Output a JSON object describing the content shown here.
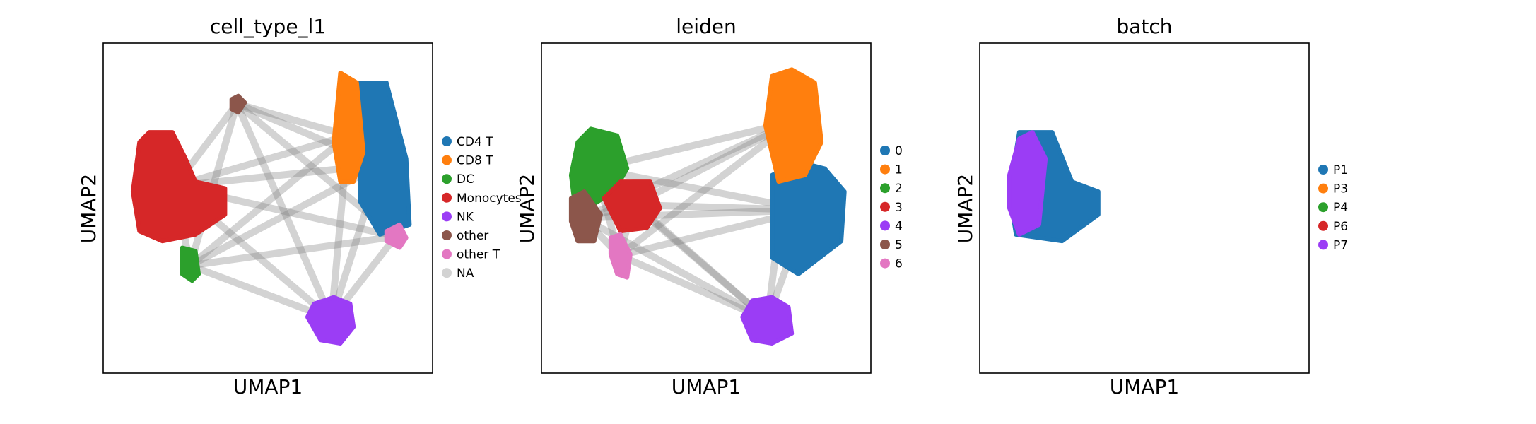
{
  "chart_data": [
    {
      "type": "scatter",
      "title": "cell_type_l1",
      "xlabel": "UMAP1",
      "ylabel": "UMAP2",
      "xticks": [],
      "yticks": [],
      "edges": "PAGA-style grey connections between cluster centroids",
      "legend_position": "right",
      "series": [
        {
          "name": "CD4 T",
          "color": "#1f77b4",
          "region": [
            [
              0.78,
              0.38
            ],
            [
              0.78,
              0.12
            ],
            [
              0.86,
              0.12
            ],
            [
              0.92,
              0.35
            ],
            [
              0.93,
              0.55
            ],
            [
              0.84,
              0.58
            ],
            [
              0.78,
              0.48
            ]
          ]
        },
        {
          "name": "CD8 T",
          "color": "#ff7f0e",
          "region": [
            [
              0.7,
              0.3
            ],
            [
              0.72,
              0.09
            ],
            [
              0.77,
              0.12
            ],
            [
              0.79,
              0.33
            ],
            [
              0.76,
              0.42
            ],
            [
              0.72,
              0.42
            ]
          ]
        },
        {
          "name": "DC",
          "color": "#2ca02c",
          "region": [
            [
              0.24,
              0.62
            ],
            [
              0.28,
              0.63
            ],
            [
              0.29,
              0.7
            ],
            [
              0.27,
              0.72
            ],
            [
              0.24,
              0.7
            ]
          ]
        },
        {
          "name": "Monocytes",
          "color": "#d62728",
          "region": [
            [
              0.09,
              0.45
            ],
            [
              0.11,
              0.3
            ],
            [
              0.14,
              0.27
            ],
            [
              0.21,
              0.27
            ],
            [
              0.25,
              0.35
            ],
            [
              0.28,
              0.42
            ],
            [
              0.37,
              0.44
            ],
            [
              0.37,
              0.52
            ],
            [
              0.28,
              0.58
            ],
            [
              0.18,
              0.6
            ],
            [
              0.11,
              0.57
            ]
          ]
        },
        {
          "name": "NK",
          "color": "#9b3df5",
          "region": [
            [
              0.62,
              0.83
            ],
            [
              0.64,
              0.79
            ],
            [
              0.7,
              0.77
            ],
            [
              0.75,
              0.79
            ],
            [
              0.76,
              0.86
            ],
            [
              0.72,
              0.91
            ],
            [
              0.66,
              0.9
            ]
          ]
        },
        {
          "name": "other",
          "color": "#8c564b",
          "region": [
            [
              0.39,
              0.17
            ],
            [
              0.41,
              0.16
            ],
            [
              0.43,
              0.18
            ],
            [
              0.41,
              0.21
            ],
            [
              0.39,
              0.2
            ]
          ]
        },
        {
          "name": "other T",
          "color": "#e377c2",
          "region": [
            [
              0.86,
              0.57
            ],
            [
              0.9,
              0.55
            ],
            [
              0.92,
              0.59
            ],
            [
              0.9,
              0.62
            ],
            [
              0.86,
              0.6
            ]
          ]
        },
        {
          "name": "NA",
          "color": "#d3d3d3",
          "region": []
        }
      ]
    },
    {
      "type": "scatter",
      "title": "leiden",
      "xlabel": "UMAP1",
      "ylabel": "UMAP2",
      "xticks": [],
      "yticks": [],
      "edges": "PAGA-style grey connections between cluster centroids",
      "legend_position": "right",
      "series": [
        {
          "name": "0",
          "color": "#1f77b4",
          "region": [
            [
              0.7,
              0.4
            ],
            [
              0.78,
              0.36
            ],
            [
              0.86,
              0.38
            ],
            [
              0.92,
              0.45
            ],
            [
              0.91,
              0.6
            ],
            [
              0.78,
              0.7
            ],
            [
              0.7,
              0.65
            ]
          ]
        },
        {
          "name": "1",
          "color": "#ff7f0e",
          "region": [
            [
              0.68,
              0.25
            ],
            [
              0.7,
              0.1
            ],
            [
              0.76,
              0.08
            ],
            [
              0.83,
              0.12
            ],
            [
              0.85,
              0.3
            ],
            [
              0.8,
              0.4
            ],
            [
              0.72,
              0.42
            ]
          ]
        },
        {
          "name": "2",
          "color": "#2ca02c",
          "region": [
            [
              0.09,
              0.4
            ],
            [
              0.11,
              0.3
            ],
            [
              0.15,
              0.26
            ],
            [
              0.23,
              0.28
            ],
            [
              0.26,
              0.38
            ],
            [
              0.22,
              0.45
            ],
            [
              0.14,
              0.5
            ],
            [
              0.1,
              0.48
            ]
          ]
        },
        {
          "name": "3",
          "color": "#d62728",
          "region": [
            [
              0.19,
              0.47
            ],
            [
              0.24,
              0.42
            ],
            [
              0.33,
              0.42
            ],
            [
              0.36,
              0.5
            ],
            [
              0.32,
              0.56
            ],
            [
              0.24,
              0.57
            ]
          ]
        },
        {
          "name": "4",
          "color": "#9b3df5",
          "region": [
            [
              0.61,
              0.83
            ],
            [
              0.64,
              0.78
            ],
            [
              0.7,
              0.77
            ],
            [
              0.75,
              0.8
            ],
            [
              0.76,
              0.88
            ],
            [
              0.7,
              0.91
            ],
            [
              0.64,
              0.9
            ]
          ]
        },
        {
          "name": "5",
          "color": "#8c564b",
          "region": [
            [
              0.09,
              0.47
            ],
            [
              0.13,
              0.45
            ],
            [
              0.18,
              0.52
            ],
            [
              0.16,
              0.6
            ],
            [
              0.11,
              0.6
            ],
            [
              0.09,
              0.54
            ]
          ]
        },
        {
          "name": "6",
          "color": "#e377c2",
          "region": [
            [
              0.21,
              0.59
            ],
            [
              0.24,
              0.58
            ],
            [
              0.27,
              0.64
            ],
            [
              0.26,
              0.71
            ],
            [
              0.23,
              0.7
            ],
            [
              0.21,
              0.64
            ]
          ]
        }
      ]
    },
    {
      "type": "scatter",
      "title": "batch",
      "xlabel": "UMAP1",
      "ylabel": "UMAP2",
      "xticks": [],
      "yticks": [],
      "edges": "PAGA-style grey connections between cluster centroids",
      "legend_position": "right",
      "series": [
        {
          "name": "P1",
          "color": "#1f77b4",
          "region": [
            [
              0.09,
              0.45
            ],
            [
              0.12,
              0.27
            ],
            [
              0.22,
              0.27
            ],
            [
              0.28,
              0.42
            ],
            [
              0.36,
              0.45
            ],
            [
              0.36,
              0.52
            ],
            [
              0.25,
              0.6
            ],
            [
              0.11,
              0.58
            ]
          ]
        },
        {
          "name": "P3",
          "color": "#ff7f0e",
          "region": []
        },
        {
          "name": "P4",
          "color": "#2ca02c",
          "region": []
        },
        {
          "name": "P6",
          "color": "#d62728",
          "region": []
        },
        {
          "name": "P7",
          "color": "#9b3df5",
          "region": [
            [
              0.09,
              0.4
            ],
            [
              0.12,
              0.29
            ],
            [
              0.16,
              0.27
            ],
            [
              0.2,
              0.35
            ],
            [
              0.18,
              0.55
            ],
            [
              0.12,
              0.58
            ],
            [
              0.09,
              0.5
            ]
          ]
        }
      ]
    }
  ]
}
